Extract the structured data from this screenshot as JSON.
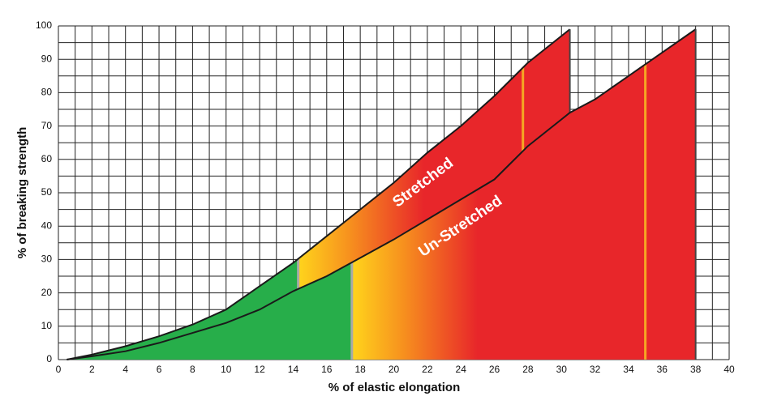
{
  "chart_data": {
    "type": "area",
    "x_label": "% of elastic elongation",
    "y_label": "% of breaking strength",
    "xlim": [
      0,
      40
    ],
    "ylim": [
      0,
      100
    ],
    "xticks": [
      0,
      2,
      4,
      6,
      8,
      10,
      12,
      14,
      16,
      18,
      20,
      22,
      24,
      26,
      28,
      30,
      32,
      34,
      36,
      38,
      40
    ],
    "yticks": [
      0,
      10,
      20,
      30,
      40,
      50,
      60,
      70,
      80,
      90,
      100
    ],
    "grid": true,
    "series": [
      {
        "name": "Stretched",
        "color": "#e8262a",
        "x": [
          0.5,
          2,
          4,
          6,
          8,
          10,
          12,
          14,
          16,
          18,
          20,
          22,
          24,
          26,
          28,
          30.5
        ],
        "values": [
          0,
          1.5,
          4,
          7,
          10.5,
          15,
          22,
          29,
          37,
          45,
          53,
          62,
          70,
          79,
          89,
          99
        ],
        "markers": [
          {
            "x": 14.3,
            "color": "#a9a9a9"
          },
          {
            "x": 27.7,
            "color": "#f5a623"
          }
        ]
      },
      {
        "name": "Un-Stretched",
        "color": "#e8262a",
        "x": [
          0.5,
          2,
          4,
          6,
          8,
          10,
          12,
          14,
          16,
          18,
          20,
          22,
          24,
          26,
          28,
          30,
          30.5,
          32,
          34,
          36,
          38
        ],
        "values": [
          0,
          1,
          2.5,
          5,
          8,
          11,
          15,
          20.5,
          25,
          30.5,
          36,
          42,
          48,
          54,
          64,
          72,
          74,
          78,
          85,
          92,
          99
        ],
        "markers": [
          {
            "x": 17.5,
            "color": "#a9a9a9"
          },
          {
            "x": 35,
            "color": "#f5a623"
          }
        ]
      }
    ]
  }
}
